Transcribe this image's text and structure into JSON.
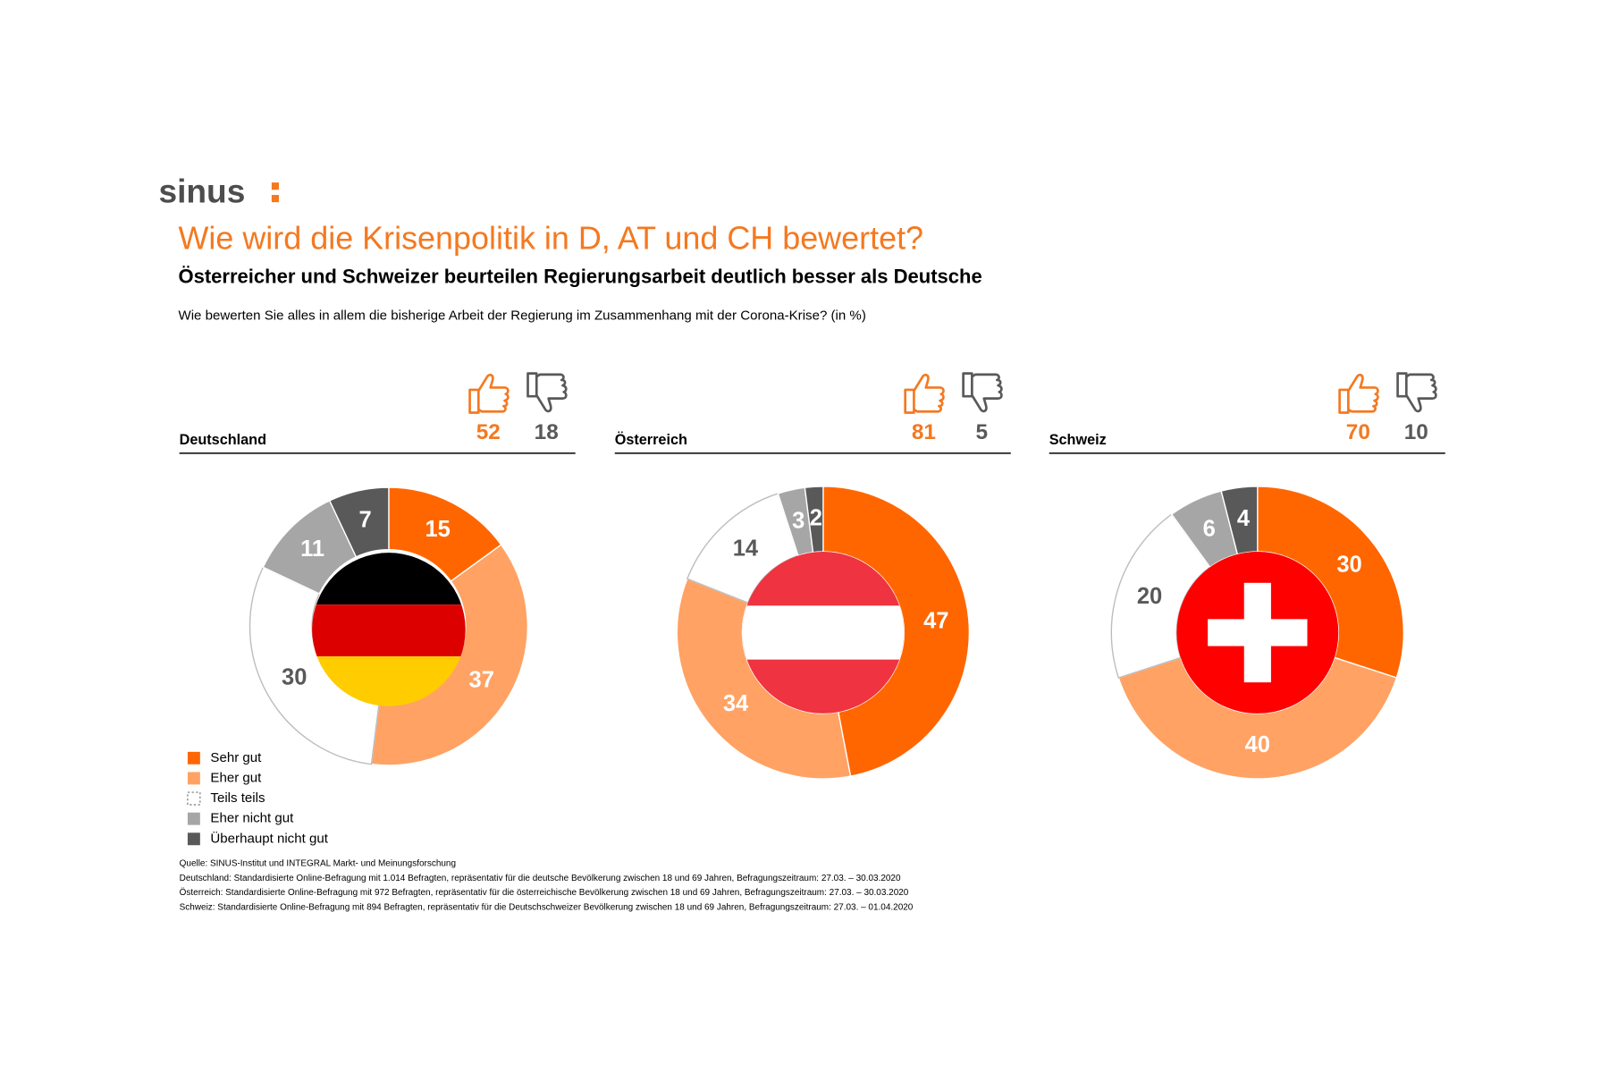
{
  "header": {
    "logo": "sinus",
    "title": "Wie wird die Krisenpolitik in D, AT und CH bewertet?",
    "subtitle": "Österreicher und Schweizer beurteilen Regierungsarbeit deutlich besser als Deutsche",
    "question": "Wie bewerten Sie alles in allem die bisherige Arbeit der Regierung im Zusammenhang mit der Corona-Krise? (in %)"
  },
  "legend": {
    "labels": [
      "Sehr gut",
      "Eher gut",
      "Teils teils",
      "Eher nicht gut",
      "Überhaupt nicht gut"
    ],
    "colors": [
      "#ff6600",
      "#ffa264",
      "#ffffff",
      "#a6a6a6",
      "#595959"
    ]
  },
  "chart_data": [
    {
      "type": "donut",
      "title": "Deutschland",
      "values": [
        15,
        37,
        30,
        11,
        7
      ],
      "thumbs_up": 52,
      "thumbs_down": 18
    },
    {
      "type": "donut",
      "title": "Österreich",
      "values": [
        47,
        34,
        14,
        3,
        2
      ],
      "thumbs_up": 81,
      "thumbs_down": 5
    },
    {
      "type": "donut",
      "title": "Schweiz",
      "values": [
        30,
        40,
        20,
        6,
        4
      ],
      "thumbs_up": 70,
      "thumbs_down": 10
    }
  ],
  "source": [
    "Quelle: SINUS-Institut und INTEGRAL Markt- und Meinungsforschung",
    "Deutschland: Standardisierte Online-Befragung mit 1.014 Befragten, repräsentativ für die deutsche Bevölkerung zwischen 18 und 69 Jahren, Befragungszeitraum: 27.03. – 30.03.2020",
    "Österreich: Standardisierte Online-Befragung mit 972 Befragten, repräsentativ für die österreichische Bevölkerung zwischen 18 und 69 Jahren, Befragungszeitraum: 27.03. – 30.03.2020",
    "Schweiz: Standardisierte Online-Befragung mit 894 Befragten, repräsentativ für die Deutschschweizer Bevölkerung zwischen 18 und 69 Jahren, Befragungszeitraum: 27.03. – 01.04.2020"
  ]
}
